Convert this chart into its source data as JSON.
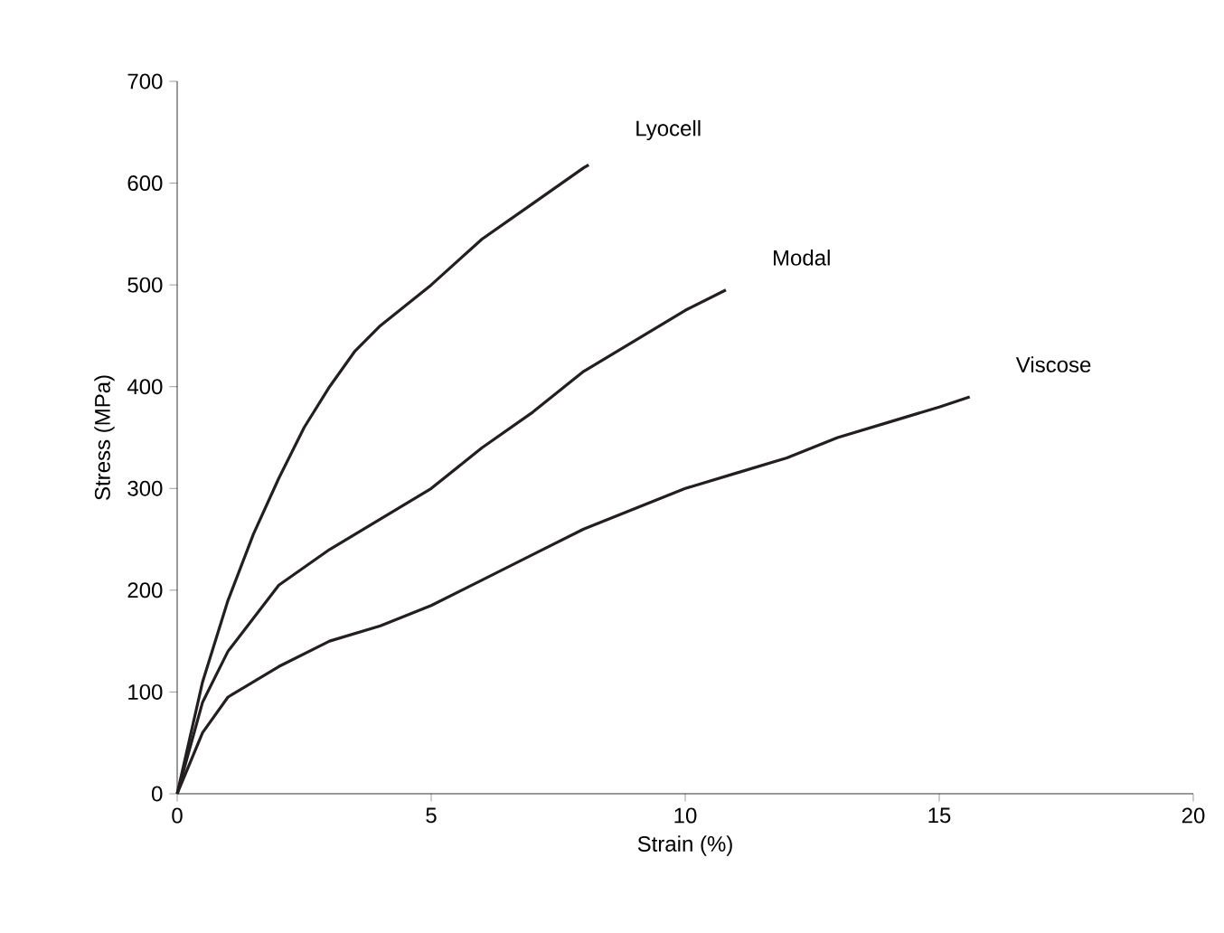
{
  "chart_data": {
    "type": "line",
    "xlabel": "Strain (%)",
    "ylabel": "Stress (MPa)",
    "xlim": [
      0,
      20
    ],
    "ylim": [
      0,
      700
    ],
    "xticks": [
      0,
      5,
      10,
      15,
      20
    ],
    "yticks": [
      0,
      100,
      200,
      300,
      400,
      500,
      600,
      700
    ],
    "grid": false,
    "marker": "none",
    "line_style": "solid",
    "series": [
      {
        "name": "Lyocell",
        "color": "#231f20",
        "x": [
          0,
          0.5,
          1,
          1.5,
          2,
          2.5,
          3,
          3.5,
          4,
          5,
          6,
          7,
          8,
          8.1
        ],
        "values": [
          0,
          110,
          190,
          255,
          310,
          360,
          400,
          435,
          460,
          500,
          545,
          580,
          615,
          618
        ]
      },
      {
        "name": "Modal",
        "color": "#231f20",
        "x": [
          0,
          0.5,
          1,
          2,
          3,
          4,
          5,
          6,
          7,
          8,
          9,
          10,
          10.8
        ],
        "values": [
          0,
          90,
          140,
          205,
          240,
          270,
          300,
          340,
          375,
          415,
          445,
          475,
          495
        ]
      },
      {
        "name": "Viscose",
        "color": "#231f20",
        "x": [
          0,
          0.5,
          1,
          2,
          3,
          4,
          5,
          6,
          7,
          8,
          9,
          10,
          11,
          12,
          13,
          14,
          15,
          15.6
        ],
        "values": [
          0,
          60,
          95,
          125,
          150,
          165,
          185,
          210,
          235,
          260,
          280,
          300,
          315,
          330,
          350,
          365,
          380,
          390
        ]
      }
    ]
  }
}
